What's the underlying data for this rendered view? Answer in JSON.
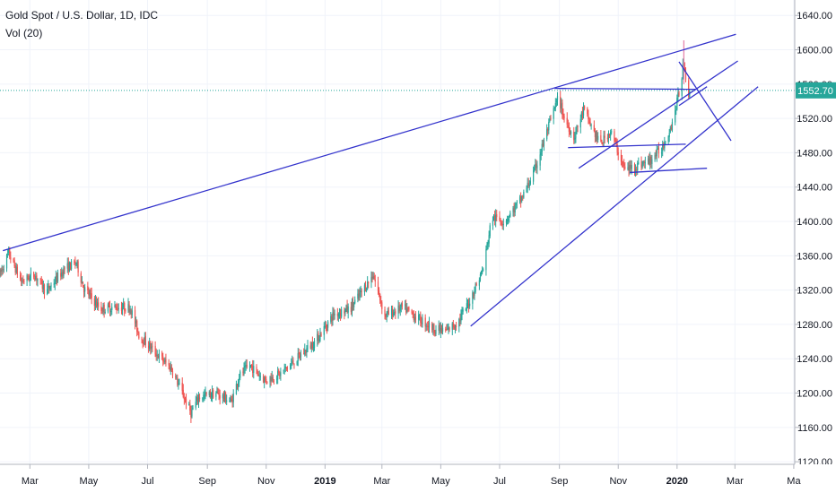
{
  "header": {
    "title": "Gold Spot / U.S. Dollar, 1D, IDC",
    "indicator": "Vol (20)"
  },
  "colors": {
    "up": "#26a69a",
    "down": "#ef5350",
    "trendline": "#3333cc",
    "price_line": "#26a69a",
    "grid": "#f0f3fa",
    "axis_text": "#131722",
    "spike": "#e57ca8"
  },
  "chart_data": {
    "type": "candlestick",
    "symbol": "Gold Spot / U.S. Dollar",
    "interval": "1D",
    "source": "IDC",
    "current_price": "1552.70",
    "y_ticks": [
      "1640.00",
      "1600.00",
      "1560.00",
      "1520.00",
      "1480.00",
      "1440.00",
      "1400.00",
      "1360.00",
      "1320.00",
      "1280.00",
      "1240.00",
      "1200.00",
      "1160.00",
      "1120.00"
    ],
    "ylim": [
      1117,
      1658
    ],
    "x_ticks": [
      "Mar",
      "May",
      "Jul",
      "Sep",
      "Nov",
      "2019",
      "Mar",
      "May",
      "Jul",
      "Sep",
      "Nov",
      "2020",
      "Mar",
      "Ma"
    ],
    "x_tick_dates": [
      "2018-03-01",
      "2018-05-01",
      "2018-07-01",
      "2018-09-01",
      "2018-11-01",
      "2019-01-01",
      "2019-03-01",
      "2019-05-01",
      "2019-07-01",
      "2019-09-01",
      "2019-11-01",
      "2020-01-01",
      "2020-03-01",
      "2020-05-01"
    ],
    "xlim": [
      "2018-01-29",
      "2020-05-02"
    ],
    "close_anchors": [
      [
        "2018-01-29",
        1338
      ],
      [
        "2018-02-07",
        1363
      ],
      [
        "2018-02-20",
        1330
      ],
      [
        "2018-03-06",
        1338
      ],
      [
        "2018-03-18",
        1318
      ],
      [
        "2018-04-06",
        1345
      ],
      [
        "2018-04-18",
        1352
      ],
      [
        "2018-04-26",
        1322
      ],
      [
        "2018-05-13",
        1298
      ],
      [
        "2018-05-27",
        1300
      ],
      [
        "2018-06-13",
        1300
      ],
      [
        "2018-06-22",
        1268
      ],
      [
        "2018-07-11",
        1245
      ],
      [
        "2018-07-26",
        1228
      ],
      [
        "2018-08-15",
        1177
      ],
      [
        "2018-08-23",
        1195
      ],
      [
        "2018-09-10",
        1200
      ],
      [
        "2018-09-26",
        1190
      ],
      [
        "2018-10-04",
        1220
      ],
      [
        "2018-10-15",
        1232
      ],
      [
        "2018-10-31",
        1215
      ],
      [
        "2018-11-15",
        1222
      ],
      [
        "2018-12-01",
        1238
      ],
      [
        "2018-12-23",
        1262
      ],
      [
        "2019-01-10",
        1292
      ],
      [
        "2019-01-27",
        1298
      ],
      [
        "2019-02-20",
        1338
      ],
      [
        "2019-03-04",
        1290
      ],
      [
        "2019-03-23",
        1300
      ],
      [
        "2019-04-06",
        1288
      ],
      [
        "2019-04-24",
        1275
      ],
      [
        "2019-05-06",
        1272
      ],
      [
        "2019-05-19",
        1283
      ],
      [
        "2019-05-30",
        1305
      ],
      [
        "2019-06-14",
        1345
      ],
      [
        "2019-06-23",
        1405
      ],
      [
        "2019-07-06",
        1400
      ],
      [
        "2019-07-23",
        1425
      ],
      [
        "2019-08-06",
        1458
      ],
      [
        "2019-08-22",
        1515
      ],
      [
        "2019-08-31",
        1545
      ],
      [
        "2019-09-06",
        1520
      ],
      [
        "2019-09-16",
        1498
      ],
      [
        "2019-09-26",
        1530
      ],
      [
        "2019-10-13",
        1490
      ],
      [
        "2019-10-24",
        1505
      ],
      [
        "2019-11-08",
        1460
      ],
      [
        "2019-11-20",
        1465
      ],
      [
        "2019-12-03",
        1470
      ],
      [
        "2019-12-16",
        1485
      ],
      [
        "2019-12-27",
        1515
      ],
      [
        "2020-01-03",
        1550
      ],
      [
        "2020-01-08",
        1585
      ],
      [
        "2020-01-13",
        1548
      ]
    ],
    "annotations": {
      "price_line": 1552.7,
      "spike": {
        "date": "2020-01-08",
        "high": 1611,
        "low": 1560
      },
      "trendlines": [
        {
          "from": [
            "2018-02-01",
            1366
          ],
          "to": [
            "2020-03-02",
            1618
          ]
        },
        {
          "from": [
            "2019-06-01",
            1278
          ],
          "to": [
            "2020-03-25",
            1557
          ]
        },
        {
          "from": [
            "2019-09-21",
            1462
          ],
          "to": [
            "2020-03-04",
            1587
          ]
        },
        {
          "from": [
            "2019-08-27",
            1555
          ],
          "to": [
            "2020-01-21",
            1554
          ]
        },
        {
          "from": [
            "2019-08-31",
            1555
          ],
          "to": [
            "2019-09-08",
            1555
          ]
        },
        {
          "from": [
            "2019-09-10",
            1486
          ],
          "to": [
            "2020-01-10",
            1490
          ]
        },
        {
          "from": [
            "2019-11-13",
            1457
          ],
          "to": [
            "2020-02-01",
            1462
          ]
        },
        {
          "from": [
            "2020-01-03",
            1586
          ],
          "to": [
            "2020-02-26",
            1494
          ]
        },
        {
          "from": [
            "2020-01-03",
            1535
          ],
          "to": [
            "2020-02-01",
            1557
          ]
        }
      ]
    },
    "grid": true,
    "legend": "top-left"
  }
}
